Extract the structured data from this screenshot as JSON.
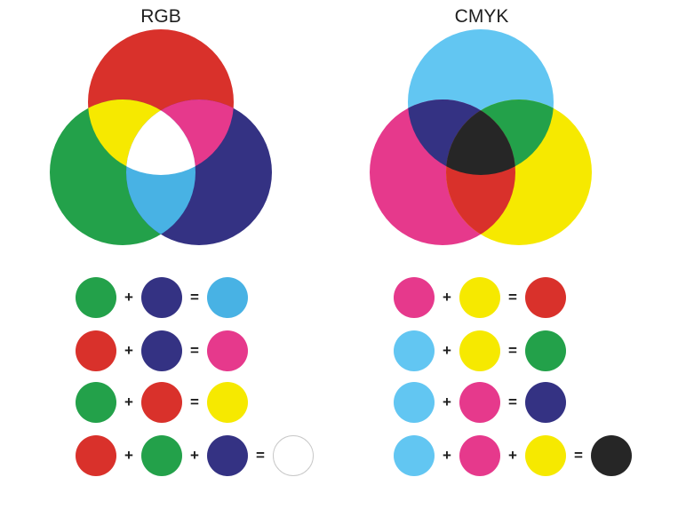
{
  "rgb": {
    "title": "RGB",
    "colors": {
      "red": "#d9312b",
      "green": "#23a14a",
      "blue": "#343283",
      "yellow": "#f6e900",
      "magenta": "#e6398c",
      "cyan": "#48b2e4",
      "white": "#ffffff"
    },
    "equations": [
      {
        "inputs": [
          "green",
          "blue"
        ],
        "result": "cyan"
      },
      {
        "inputs": [
          "red",
          "blue"
        ],
        "result": "magenta"
      },
      {
        "inputs": [
          "green",
          "red"
        ],
        "result": "yellow"
      },
      {
        "inputs": [
          "red",
          "green",
          "blue"
        ],
        "result": "white"
      }
    ]
  },
  "cmyk": {
    "title": "CMYK",
    "colors": {
      "cyan": "#62c6f2",
      "magenta": "#e6398c",
      "yellow": "#f6e900",
      "red": "#d9312b",
      "green": "#23a14a",
      "blue": "#343283",
      "black": "#262626"
    },
    "equations": [
      {
        "inputs": [
          "magenta",
          "yellow"
        ],
        "result": "red"
      },
      {
        "inputs": [
          "cyan",
          "yellow"
        ],
        "result": "green"
      },
      {
        "inputs": [
          "cyan",
          "magenta"
        ],
        "result": "blue"
      },
      {
        "inputs": [
          "cyan",
          "magenta",
          "yellow"
        ],
        "result": "black"
      }
    ]
  },
  "symbols": {
    "plus": "+",
    "equals": "="
  }
}
